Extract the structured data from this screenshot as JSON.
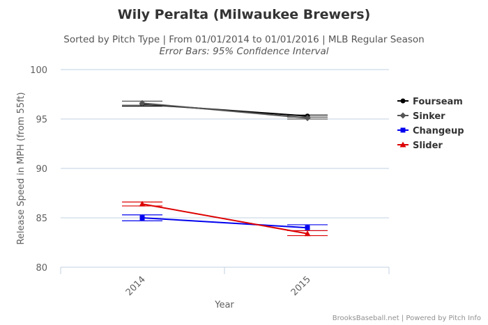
{
  "chart_data": {
    "type": "line",
    "title": "Wily Peralta (Milwaukee Brewers)",
    "subtitle": "Sorted by Pitch Type | From 01/01/2014 to 01/01/2016 | MLB Regular Season",
    "subtitle2": "Error Bars: 95% Confidence Interval",
    "xlabel": "Year",
    "ylabel": "Release Speed in MPH (from 55ft)",
    "categories": [
      "2014",
      "2015"
    ],
    "ylim": [
      80,
      100
    ],
    "yticks": [
      "80",
      "85",
      "90",
      "95",
      "100"
    ],
    "grid": true,
    "legend_position": "right",
    "series": [
      {
        "name": "Fourseam",
        "color": "#000000",
        "marker": "circle",
        "values": [
          96.5,
          95.3
        ],
        "error": [
          [
            96.3,
            96.8
          ],
          [
            95.2,
            95.4
          ]
        ]
      },
      {
        "name": "Sinker",
        "color": "#555555",
        "marker": "diamond",
        "values": [
          96.6,
          95.1
        ],
        "error": [
          [
            96.4,
            96.8
          ],
          [
            95.0,
            95.2
          ]
        ]
      },
      {
        "name": "Changeup",
        "color": "#0000ee",
        "marker": "square",
        "values": [
          85.0,
          84.0
        ],
        "error": [
          [
            84.7,
            85.3
          ],
          [
            83.7,
            84.3
          ]
        ]
      },
      {
        "name": "Slider",
        "color": "#dd0000",
        "marker": "triangle",
        "values": [
          86.4,
          83.4
        ],
        "error": [
          [
            86.2,
            86.6
          ],
          [
            83.2,
            83.7
          ]
        ]
      }
    ],
    "credits": "BrooksBaseball.net | Powered by Pitch Info"
  }
}
